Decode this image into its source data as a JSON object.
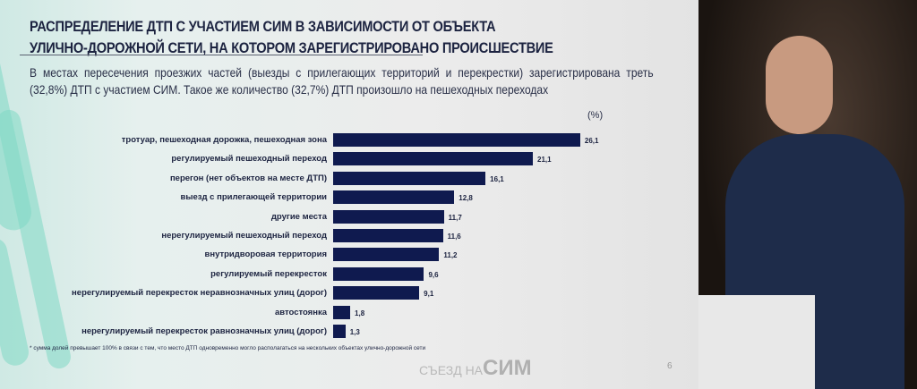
{
  "title_line1": "РАСПРЕДЕЛЕНИЕ ДТП С УЧАСТИЕМ СИМ В ЗАВИСИМОСТИ ОТ ОБЪЕКТА",
  "title_line2": "УЛИЧНО-ДОРОЖНОЙ СЕТИ, НА КОТОРОМ ЗАРЕГИСТРИРОВАНО ПРОИСШЕСТВИЕ",
  "subtitle": "В местах пересечения проезжих частей (выезды с прилегающих территорий и перекрестки) зарегистрирована треть (32,8%) ДТП с участием СИМ. Такое же количество (32,7%) ДТП произошло на пешеходных переходах",
  "footnote": "* сумма долей превышает 100% в связи с тем, что место ДТП одновременно могло располагаться на нескольких объектах улично-дорожной сети",
  "logo": {
    "prefix": "СЪЕЗД НА",
    "brand": "СИМ"
  },
  "page_number": "6",
  "chart_data": {
    "type": "bar",
    "orientation": "horizontal",
    "unit": "(%)",
    "bar_color": "#0f1a4f",
    "categories": [
      "тротуар, пешеходная дорожка, пешеходная зона",
      "регулируемый пешеходный переход",
      "перегон (нет объектов на месте ДТП)",
      "выезд с прилегающей территории",
      "другие места",
      "нерегулируемый пешеходный переход",
      "внутридворовая территория",
      "регулируемый перекресток",
      "нерегулируемый перекресток неравнозначных улиц (дорог)",
      "автостоянка",
      "нерегулируемый перекресток равнозначных улиц (дорог)"
    ],
    "values": [
      26.1,
      21.1,
      16.1,
      12.8,
      11.7,
      11.6,
      11.2,
      9.6,
      9.1,
      1.8,
      1.3
    ],
    "labels": [
      "26,1",
      "21,1",
      "16,1",
      "12,8",
      "11,7",
      "11,6",
      "11,2",
      "9,6",
      "9,1",
      "1,8",
      "1,3"
    ]
  }
}
